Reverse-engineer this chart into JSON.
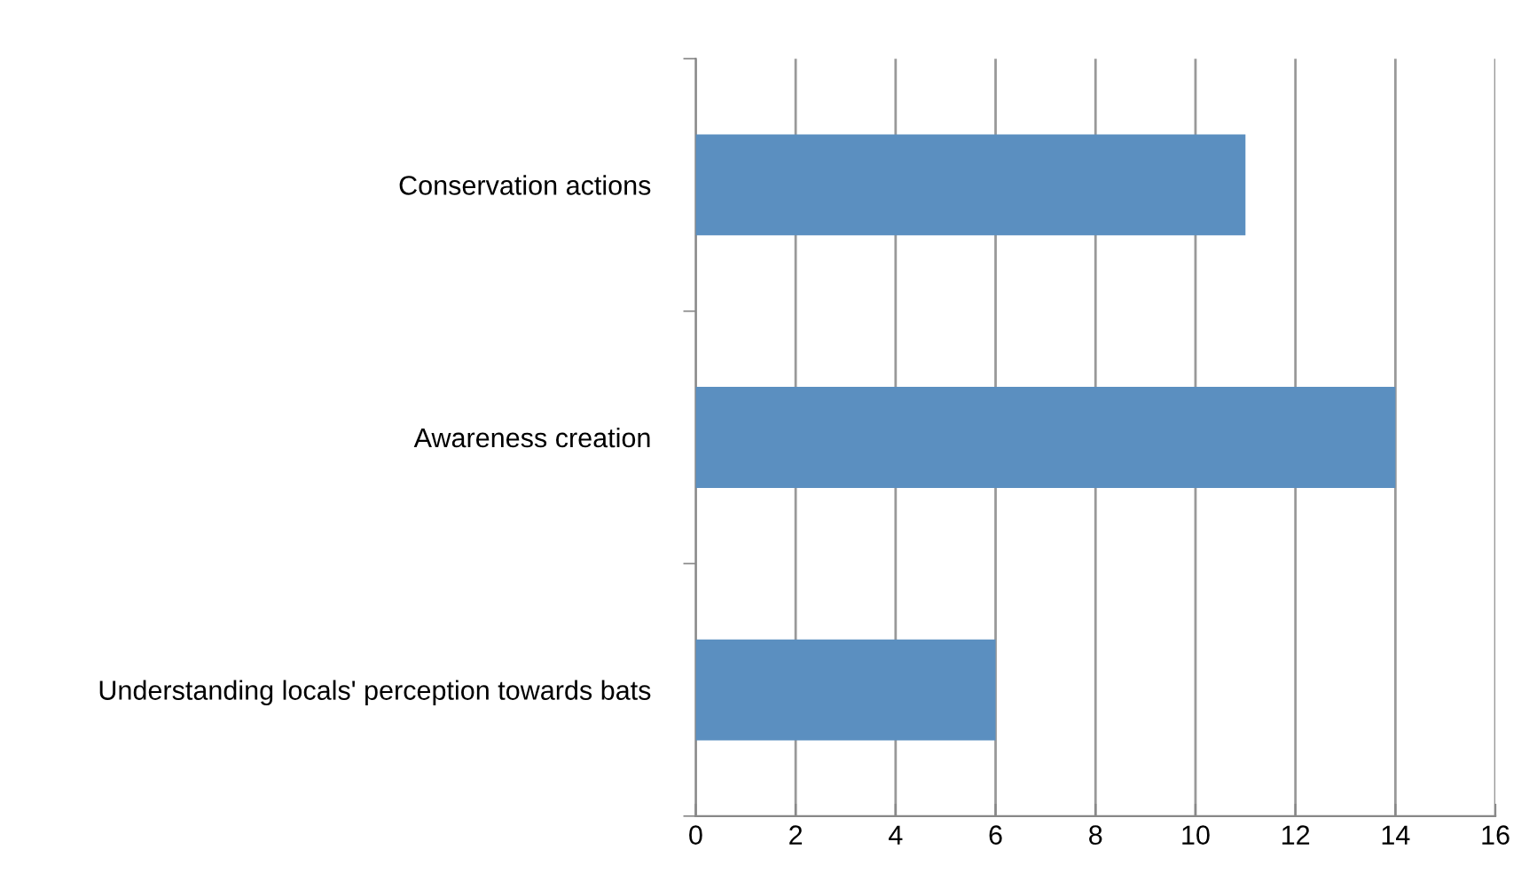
{
  "chart_data": {
    "type": "bar",
    "orientation": "horizontal",
    "categories": [
      "Conservation actions",
      "Awareness creation",
      "Understanding locals' perception towards bats"
    ],
    "values": [
      11,
      14,
      6
    ],
    "color": "#5b8fc0",
    "xlim": [
      0,
      16
    ],
    "xticks": [
      0,
      2,
      4,
      6,
      8,
      10,
      12,
      14,
      16
    ],
    "grid": "x"
  }
}
